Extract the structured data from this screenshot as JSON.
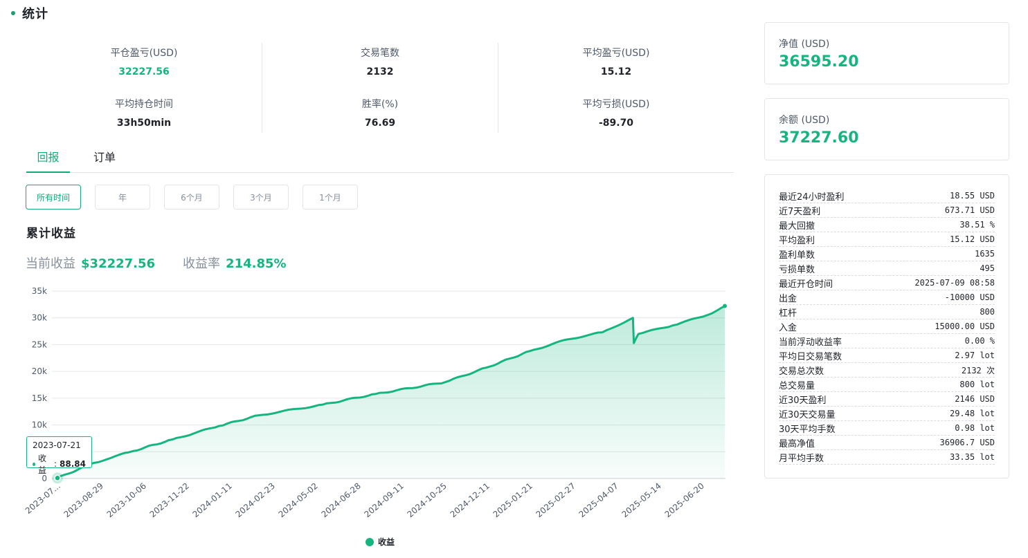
{
  "header": {
    "title": "统计"
  },
  "summary": [
    [
      {
        "label": "平仓盈亏(USD)",
        "value": "32227.56",
        "green": true
      },
      {
        "label": "平均持仓时间",
        "value": "33h50min",
        "green": false
      }
    ],
    [
      {
        "label": "交易笔数",
        "value": "2132",
        "green": false
      },
      {
        "label": "胜率(%)",
        "value": "76.69",
        "green": false
      }
    ],
    [
      {
        "label": "平均盈亏(USD)",
        "value": "15.12",
        "green": false
      },
      {
        "label": "平均亏损(USD)",
        "value": "-89.70",
        "green": false
      }
    ]
  ],
  "tabs": [
    {
      "label": "回报",
      "active": true
    },
    {
      "label": "订单",
      "active": false
    }
  ],
  "ranges": [
    {
      "label": "所有时间",
      "active": true
    },
    {
      "label": "年",
      "active": false
    },
    {
      "label": "6个月",
      "active": false
    },
    {
      "label": "3个月",
      "active": false
    },
    {
      "label": "1个月",
      "active": false
    }
  ],
  "chart_section": {
    "title": "累计收益",
    "current_profit_label": "当前收益",
    "current_profit_value": "$32227.56",
    "rate_label": "收益率",
    "rate_value": "214.85%"
  },
  "tooltip": {
    "date": "2023-07-21",
    "label": "收益",
    "value": "88.84"
  },
  "chart_data": {
    "type": "area",
    "title": "",
    "xlabel": "",
    "ylabel": "",
    "ylim": [
      0,
      35000
    ],
    "y_ticks": [
      0,
      5000,
      10000,
      15000,
      20000,
      25000,
      30000,
      35000
    ],
    "y_tick_labels": [
      "0",
      "5k",
      "10k",
      "15k",
      "20k",
      "25k",
      "30k",
      "35k"
    ],
    "x_tick_labels": [
      "2023-07...",
      "2023-08-29",
      "2023-10-06",
      "2023-11-22",
      "2024-01-11",
      "2024-02-23",
      "2024-05-02",
      "2024-06-28",
      "2024-09-11",
      "2024-10-25",
      "2024-12-11",
      "2025-01-21",
      "2025-02-27",
      "2025-04-07",
      "2025-05-14",
      "2025-06-20"
    ],
    "grid": true,
    "legend": "bottom",
    "color": "#16b57f",
    "series": [
      {
        "name": "收益",
        "x": [
          "2023-07-21",
          "2023-08-29",
          "2023-10-06",
          "2023-11-22",
          "2024-01-11",
          "2024-02-23",
          "2024-05-02",
          "2024-06-28",
          "2024-09-11",
          "2024-10-25",
          "2024-12-11",
          "2025-01-21",
          "2025-02-27",
          "2025-04-01",
          "2025-04-02",
          "2025-04-07",
          "2025-05-14",
          "2025-06-20",
          "2025-07-09"
        ],
        "values": [
          88.84,
          2900,
          4900,
          7300,
          9800,
          11800,
          13800,
          15800,
          18000,
          20700,
          23800,
          26000,
          27300,
          30000,
          25300,
          27000,
          28600,
          30500,
          32227.56
        ]
      }
    ]
  },
  "cards": {
    "equity": {
      "label": "净值 (USD)",
      "value": "36595.20"
    },
    "balance": {
      "label": "余额 (USD)",
      "value": "37227.60"
    }
  },
  "details": [
    {
      "k": "最近24小时盈利",
      "v": "18.55 USD"
    },
    {
      "k": "近7天盈利",
      "v": "673.71 USD"
    },
    {
      "k": "最大回撤",
      "v": "38.51 %"
    },
    {
      "k": "平均盈利",
      "v": "15.12 USD"
    },
    {
      "k": "盈利单数",
      "v": "1635"
    },
    {
      "k": "亏损单数",
      "v": "495"
    },
    {
      "k": "最近开仓时间",
      "v": "2025-07-09 08:58"
    },
    {
      "k": "出金",
      "v": "-10000 USD"
    },
    {
      "k": "杠杆",
      "v": "800"
    },
    {
      "k": "入金",
      "v": "15000.00 USD"
    },
    {
      "k": "当前浮动收益率",
      "v": "0.00 %"
    },
    {
      "k": "平均日交易笔数",
      "v": "2.97 lot"
    },
    {
      "k": "交易总次数",
      "v": "2132 次"
    },
    {
      "k": "总交易量",
      "v": "800 lot"
    },
    {
      "k": "近30天盈利",
      "v": "2146 USD"
    },
    {
      "k": "近30天交易量",
      "v": "29.48 lot"
    },
    {
      "k": "30天平均手数",
      "v": "0.98 lot"
    },
    {
      "k": "最高净值",
      "v": "36906.7 USD"
    },
    {
      "k": "月平均手数",
      "v": "33.35 lot"
    }
  ]
}
